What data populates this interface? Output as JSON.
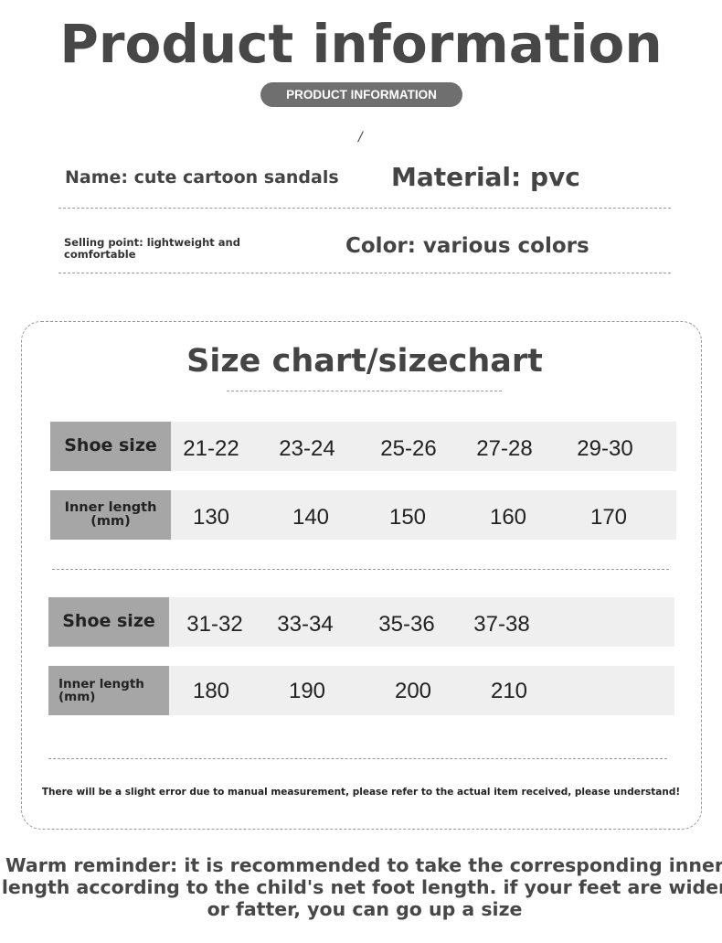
{
  "header": {
    "title": "Product information",
    "badge": "PRODUCT INFORMATION",
    "slash": "/"
  },
  "info": {
    "name": "Name: cute cartoon sandals",
    "material": "Material: pvc",
    "selling_point": "Selling point: lightweight and comfortable",
    "color": "Color: various colors"
  },
  "size_chart": {
    "title": "Size chart/sizechart",
    "tables": [
      {
        "size_label": "Shoe size",
        "length_label": "Inner length (mm)",
        "sizes": [
          "21-22",
          "23-24",
          "25-26",
          "27-28",
          "29-30"
        ],
        "lengths": [
          "130",
          "140",
          "150",
          "160",
          "170"
        ]
      },
      {
        "size_label": "Shoe size",
        "length_label": "Inner length (mm)",
        "sizes": [
          "31-32",
          "33-34",
          "35-36",
          "37-38"
        ],
        "lengths": [
          "180",
          "190",
          "200",
          "210"
        ]
      }
    ],
    "note": "There will be a slight error due to manual measurement, please refer to the actual item received, please understand!"
  },
  "reminder": "Warm reminder: it is recommended to take the corresponding inner length according to the child's net foot length. if your feet are wider or fatter, you can go up a size"
}
